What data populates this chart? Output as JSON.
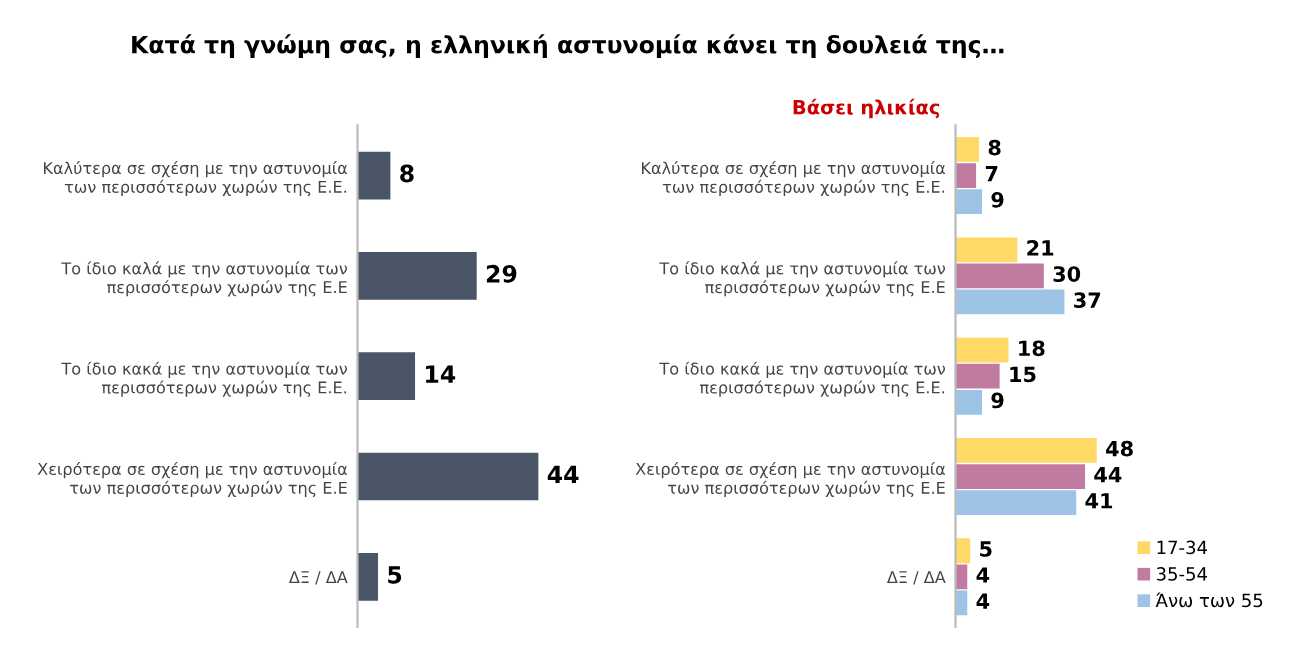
{
  "chart_data": [
    {
      "type": "bar",
      "orientation": "horizontal",
      "title": "Κατά τη γνώμη σας, η ελληνική αστυνομία κάνει τη δουλειά της…",
      "categories": [
        "Καλύτερα σε σχέση με την αστυνομία\nτων περισσότερων χωρών της Ε.Ε.",
        "Το ίδιο καλά με την αστυνομία των\nπερισσότερων χωρών της Ε.Ε",
        "Το ίδιο κακά με την αστυνομία των\nπερισσότερων χωρών της Ε.Ε.",
        "Χειρότερα σε σχέση με την αστυνομία\nτων περισσότερων χωρών της Ε.Ε",
        "ΔΞ / ΔΑ"
      ],
      "values": [
        8,
        29,
        14,
        44,
        5
      ],
      "color": "#4a5568",
      "data_labels": true,
      "tick_labels": "y",
      "legend": false
    },
    {
      "type": "bar",
      "orientation": "horizontal",
      "title": "Βάσει ηλικίας",
      "categories": [
        "Καλύτερα σε σχέση με την αστυνομία\nτων περισσότερων χωρών της Ε.Ε.",
        "Το ίδιο καλά με την αστυνομία των\nπερισσότερων χωρών της Ε.Ε",
        "Το ίδιο κακά με την αστυνομία των\nπερισσότερων χωρών της Ε.Ε.",
        "Χειρότερα σε σχέση με την αστυνομία\nτων περισσότερων χωρών της Ε.Ε",
        "ΔΞ / ΔΑ"
      ],
      "series": [
        {
          "name": "17-34",
          "color": "#ffd966",
          "values": [
            8,
            21,
            18,
            48,
            5
          ]
        },
        {
          "name": "35-54",
          "color": "#c27ba0",
          "values": [
            7,
            30,
            15,
            44,
            4
          ]
        },
        {
          "name": "Άνω των 55",
          "color": "#9dc3e6",
          "values": [
            9,
            37,
            9,
            41,
            4
          ]
        }
      ],
      "data_labels": true,
      "tick_labels": "y",
      "legend": "bottom right"
    }
  ]
}
